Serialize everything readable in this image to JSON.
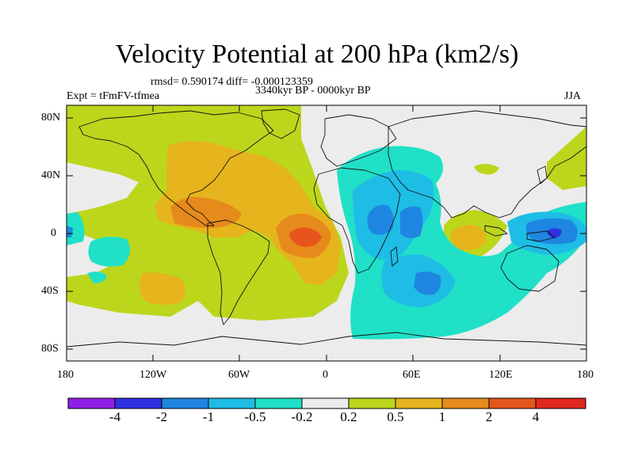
{
  "title": "Velocity Potential at 200 hPa (km2/s)",
  "stats": "rmsd= 0.590174 diff= -0.000123359",
  "period": "3340kyr BP - 0000kyr BP",
  "experiment": "Expt = tFmFV-tfmea",
  "season": "JJA",
  "axes": {
    "lat_labels": [
      "80N",
      "40N",
      "0",
      "40S",
      "80S"
    ],
    "lon_labels": [
      "180",
      "120W",
      "60W",
      "0",
      "60E",
      "120E",
      "180"
    ]
  },
  "colorbar": {
    "labels": [
      "-4",
      "-2",
      "-1",
      "-0.5",
      "-0.2",
      "0.2",
      "0.5",
      "1",
      "2",
      "4"
    ],
    "colors": [
      "#8f1fe6",
      "#3030e0",
      "#1e86e0",
      "#1ebde6",
      "#20e0c8",
      "#ececec",
      "#bcd61c",
      "#e6b41c",
      "#e68a1c",
      "#e6561c",
      "#e0281e"
    ]
  }
}
